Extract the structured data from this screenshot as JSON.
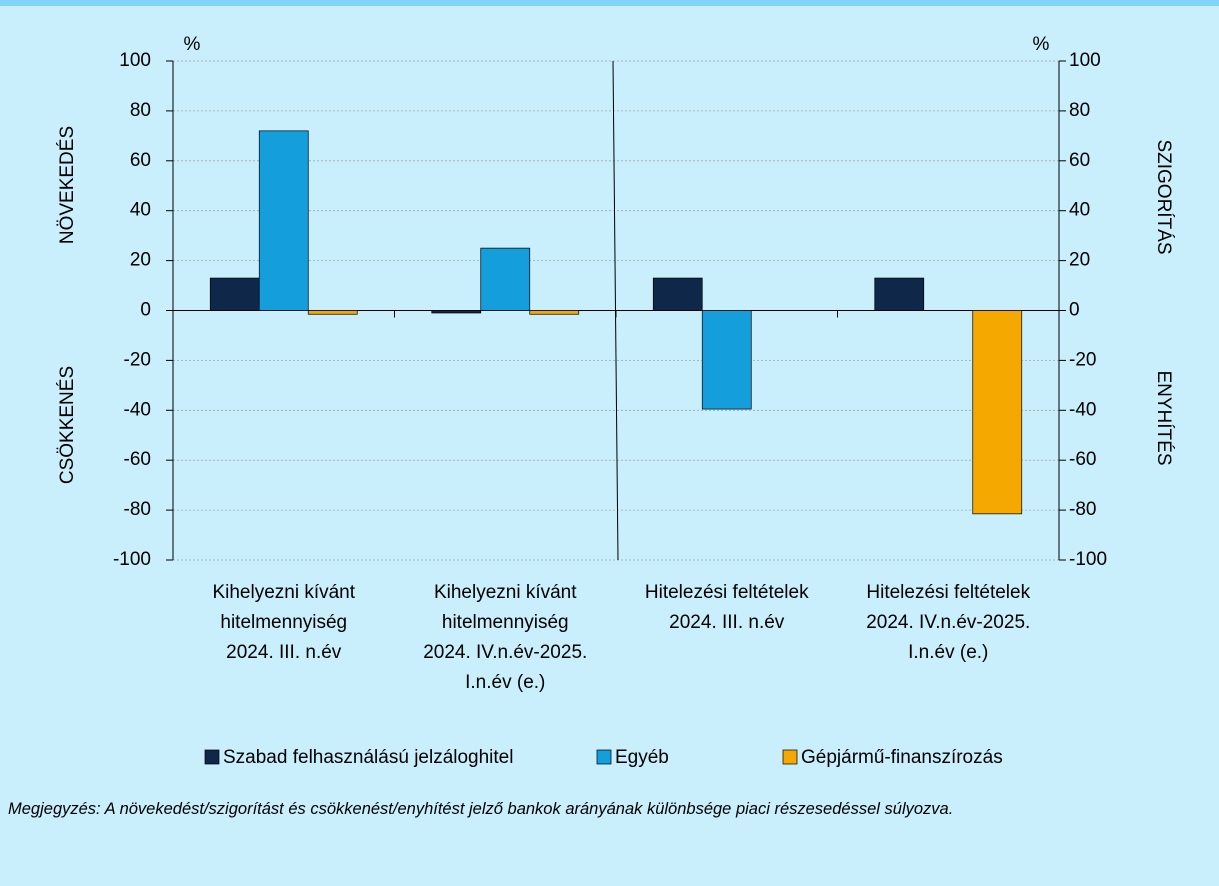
{
  "chart_data": {
    "type": "bar",
    "categories": [
      [
        "Kihelyezni kívánt",
        "hitelmennyiség",
        "2024. III. n.év"
      ],
      [
        "Kihelyezni kívánt",
        "hitelmennyiség",
        "2024. IV.n.év-2025.",
        "I.n.év (e.)"
      ],
      [
        "Hitelezési feltételek",
        "2024. III. n.év"
      ],
      [
        "Hitelezési feltételek",
        "2024. IV.n.év-2025.",
        "I.n.év (e.)"
      ]
    ],
    "series": [
      {
        "name": "Szabad felhasználású jelzáloghitel",
        "color": "#0f2748",
        "values": [
          13,
          -1,
          13,
          13
        ]
      },
      {
        "name": "Egyéb",
        "color": "#149fdc",
        "values": [
          72,
          25,
          -39.5,
          0
        ]
      },
      {
        "name": "Gépjármű-finanszírozás",
        "color": "#f5a800",
        "values": [
          -1.5,
          -1.5,
          0,
          -81.5
        ]
      }
    ],
    "ylim": [
      -100,
      100
    ],
    "yticks": [
      -100,
      -80,
      -60,
      -40,
      -20,
      0,
      20,
      40,
      60,
      80,
      100
    ],
    "y2lim": [
      -100,
      100
    ],
    "y2ticks": [
      -100,
      -80,
      -60,
      -40,
      -20,
      0,
      20,
      40,
      60,
      80,
      100
    ],
    "y_unit": "%",
    "y2_unit": "%",
    "left_annotations": [
      "NÖVEKEDÉS",
      "CSÖKKENÉS"
    ],
    "right_annotations": [
      "SZIGORÍTÁS",
      "ENYHÍTÉS"
    ],
    "grid": true,
    "note": "Megjegyzés: A növekedést/szigorítást és csökkenést/enyhítést jelző bankok arányának különbsége piaci részesedéssel súlyozva."
  }
}
